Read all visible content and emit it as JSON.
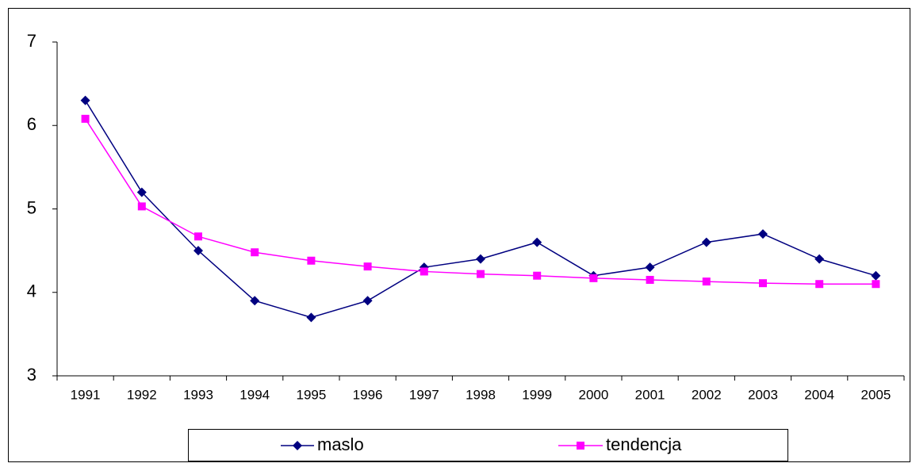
{
  "chart_data": {
    "type": "line",
    "categories": [
      "1991",
      "1992",
      "1993",
      "1994",
      "1995",
      "1996",
      "1997",
      "1998",
      "1999",
      "2000",
      "2001",
      "2002",
      "2003",
      "2004",
      "2005"
    ],
    "series": [
      {
        "name": "maslo",
        "color": "#000080",
        "marker": "diamond",
        "values": [
          6.3,
          5.2,
          4.5,
          3.9,
          3.7,
          3.9,
          4.3,
          4.4,
          4.6,
          4.2,
          4.3,
          4.6,
          4.7,
          4.4,
          4.2
        ]
      },
      {
        "name": "tendencja",
        "color": "#ff00ff",
        "marker": "square",
        "values": [
          6.08,
          5.03,
          4.67,
          4.48,
          4.38,
          4.31,
          4.25,
          4.22,
          4.2,
          4.17,
          4.15,
          4.13,
          4.11,
          4.1,
          4.1
        ]
      }
    ],
    "ylim": [
      3,
      7
    ],
    "yticks": [
      3,
      4,
      5,
      6,
      7
    ],
    "grid": false,
    "legend": "bottom"
  }
}
